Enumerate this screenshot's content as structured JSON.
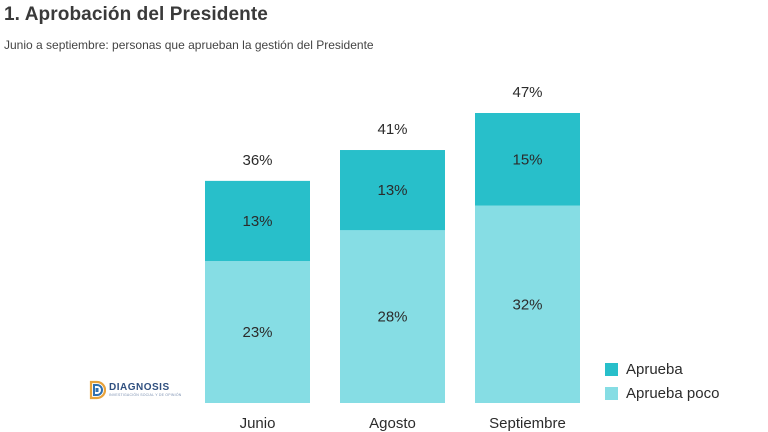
{
  "header": {
    "title": "1. Aprobación del Presidente",
    "subtitle": "Junio a septiembre: personas que aprueban la gestión del Presidente"
  },
  "logo": {
    "name": "DIAGNOSIS",
    "tagline": "INVESTIGACIÓN SOCIAL Y DE OPINIÓN",
    "icon": "diagnosis-logo-icon"
  },
  "colors": {
    "aprueba": "#28bfca",
    "aprueba_poco": "#86dde4"
  },
  "chart_data": {
    "type": "bar",
    "stacked": true,
    "title": "1. Aprobación del Presidente",
    "subtitle": "Junio a septiembre: personas que aprueban la gestión del Presidente",
    "categories": [
      "Junio",
      "Agosto",
      "Septiembre"
    ],
    "series": [
      {
        "name": "Aprueba poco",
        "values": [
          23,
          28,
          32
        ],
        "labels": [
          "23%",
          "28%",
          "32%"
        ]
      },
      {
        "name": "Aprueba",
        "values": [
          13,
          13,
          15
        ],
        "labels": [
          "13%",
          "13%",
          "15%"
        ]
      }
    ],
    "totals": [
      36,
      41,
      47
    ],
    "total_labels": [
      "36%",
      "41%",
      "47%"
    ],
    "xlabel": "",
    "ylabel": "",
    "ylim": [
      0,
      47
    ],
    "legend": [
      "Aprueba",
      "Aprueba poco"
    ],
    "legend_position": "bottom-right"
  }
}
